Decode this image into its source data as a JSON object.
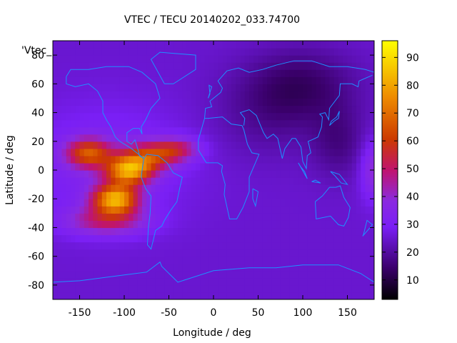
{
  "chart_data": {
    "type": "heatmap",
    "title": "VTEC / TECU 20140202_033.74700",
    "xlabel": "Longitude / deg",
    "ylabel": "Latitude / deg",
    "legend_label": "'Vtec_",
    "xlim": [
      -180,
      180
    ],
    "ylim": [
      -90,
      90
    ],
    "x_ticks": [
      -150,
      -100,
      -50,
      0,
      50,
      100,
      150
    ],
    "y_ticks": [
      -80,
      -60,
      -40,
      -20,
      0,
      20,
      40,
      60,
      80
    ],
    "colorbar": {
      "range": [
        3,
        96
      ],
      "ticks": [
        10,
        20,
        30,
        40,
        50,
        60,
        70,
        80,
        90
      ],
      "palette": "gnuplot black-purple-red-orange-yellow"
    },
    "grid": false,
    "coastline_color": "#1e90ff",
    "peaks_vtec": [
      {
        "lon": -95,
        "lat": 0,
        "value": 90
      },
      {
        "lon": -105,
        "lat": -20,
        "value": 92
      },
      {
        "lon": -140,
        "lat": 15,
        "value": 70
      },
      {
        "lon": -60,
        "lat": 12,
        "value": 60
      }
    ]
  }
}
